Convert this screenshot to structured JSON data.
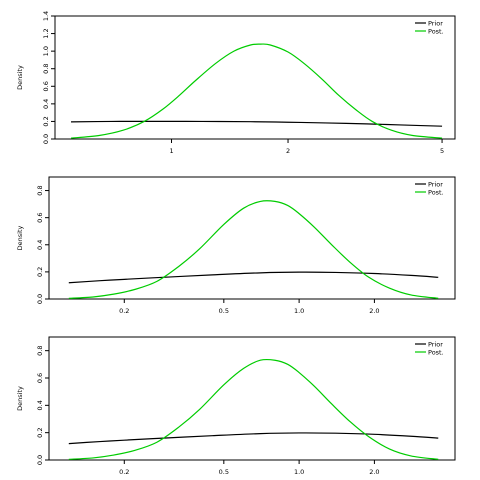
{
  "chart_data": [
    {
      "type": "line",
      "title": "",
      "xlabel": "",
      "ylabel": "Density",
      "x_scale": "log",
      "xlim": [
        0.5,
        5.4
      ],
      "ylim": [
        0,
        1.4
      ],
      "x_ticks": [
        {
          "value": 1,
          "label": "1"
        },
        {
          "value": 2,
          "label": "2"
        },
        {
          "value": 5,
          "label": "5"
        }
      ],
      "y_ticks": [
        {
          "value": 0,
          "label": "0.0"
        },
        {
          "value": 0.2,
          "label": "0.2"
        },
        {
          "value": 0.4,
          "label": "0.4"
        },
        {
          "value": 0.6,
          "label": "0.6"
        },
        {
          "value": 0.8,
          "label": "0.8"
        },
        {
          "value": 1.0,
          "label": "1.0"
        },
        {
          "value": 1.2,
          "label": "1.2"
        },
        {
          "value": 1.4,
          "label": "1.4"
        }
      ],
      "legend_placement": "top-right",
      "series": [
        {
          "name": "Prior",
          "color": "#000000",
          "x": [
            0.55,
            0.7,
            0.9,
            1.2,
            1.6,
            2.0,
            2.5,
            3.0,
            3.6,
            4.4,
            5.0
          ],
          "values": [
            0.195,
            0.2,
            0.201,
            0.2,
            0.197,
            0.191,
            0.183,
            0.175,
            0.165,
            0.153,
            0.146
          ]
        },
        {
          "name": "Post.",
          "color": "#00cc00",
          "x": [
            0.55,
            0.65,
            0.75,
            0.85,
            0.95,
            1.05,
            1.15,
            1.3,
            1.45,
            1.6,
            1.7,
            1.8,
            2.0,
            2.2,
            2.45,
            2.7,
            3.0,
            3.3,
            3.7,
            4.2,
            5.0
          ],
          "values": [
            0.01,
            0.04,
            0.1,
            0.2,
            0.34,
            0.5,
            0.66,
            0.86,
            1.0,
            1.07,
            1.08,
            1.07,
            0.99,
            0.86,
            0.68,
            0.5,
            0.33,
            0.2,
            0.1,
            0.04,
            0.01
          ]
        }
      ]
    },
    {
      "type": "line",
      "title": "",
      "xlabel": "",
      "ylabel": "Density",
      "x_scale": "log",
      "xlim": [
        0.1,
        4.2
      ],
      "ylim": [
        0,
        0.9
      ],
      "x_ticks": [
        {
          "value": 0.2,
          "label": "0.2"
        },
        {
          "value": 0.5,
          "label": "0.5"
        },
        {
          "value": 1.0,
          "label": "1.0"
        },
        {
          "value": 2.0,
          "label": "2.0"
        }
      ],
      "y_ticks": [
        {
          "value": 0,
          "label": "0.0"
        },
        {
          "value": 0.2,
          "label": "0.2"
        },
        {
          "value": 0.4,
          "label": "0.4"
        },
        {
          "value": 0.6,
          "label": "0.6"
        },
        {
          "value": 0.8,
          "label": "0.8"
        }
      ],
      "legend_placement": "top-right",
      "series": [
        {
          "name": "Prior",
          "color": "#000000",
          "x": [
            0.12,
            0.16,
            0.2,
            0.3,
            0.45,
            0.7,
            1.0,
            1.4,
            2.0,
            2.8,
            3.6
          ],
          "values": [
            0.12,
            0.135,
            0.145,
            0.162,
            0.178,
            0.193,
            0.198,
            0.196,
            0.188,
            0.174,
            0.16
          ]
        },
        {
          "name": "Post.",
          "color": "#00cc00",
          "x": [
            0.12,
            0.15,
            0.18,
            0.22,
            0.27,
            0.33,
            0.4,
            0.5,
            0.6,
            0.7,
            0.8,
            0.9,
            1.0,
            1.15,
            1.35,
            1.6,
            1.9,
            2.3,
            2.8,
            3.6
          ],
          "values": [
            0.005,
            0.015,
            0.035,
            0.07,
            0.13,
            0.24,
            0.37,
            0.55,
            0.67,
            0.72,
            0.72,
            0.69,
            0.63,
            0.53,
            0.4,
            0.27,
            0.16,
            0.08,
            0.03,
            0.005
          ]
        }
      ]
    },
    {
      "type": "line",
      "title": "",
      "xlabel": "",
      "ylabel": "Density",
      "x_scale": "log",
      "xlim": [
        0.1,
        4.2
      ],
      "ylim": [
        0,
        0.9
      ],
      "x_ticks": [
        {
          "value": 0.2,
          "label": "0.2"
        },
        {
          "value": 0.5,
          "label": "0.5"
        },
        {
          "value": 1.0,
          "label": "1.0"
        },
        {
          "value": 2.0,
          "label": "2.0"
        }
      ],
      "y_ticks": [
        {
          "value": 0,
          "label": "0.0"
        },
        {
          "value": 0.2,
          "label": "0.2"
        },
        {
          "value": 0.4,
          "label": "0.4"
        },
        {
          "value": 0.6,
          "label": "0.6"
        },
        {
          "value": 0.8,
          "label": "0.8"
        }
      ],
      "legend_placement": "top-right",
      "series": [
        {
          "name": "Prior",
          "color": "#000000",
          "x": [
            0.12,
            0.16,
            0.2,
            0.3,
            0.45,
            0.7,
            1.0,
            1.4,
            2.0,
            2.8,
            3.6
          ],
          "values": [
            0.12,
            0.135,
            0.145,
            0.162,
            0.178,
            0.193,
            0.198,
            0.196,
            0.188,
            0.174,
            0.16
          ]
        },
        {
          "name": "Post.",
          "color": "#00cc00",
          "x": [
            0.12,
            0.15,
            0.18,
            0.22,
            0.27,
            0.33,
            0.4,
            0.5,
            0.6,
            0.7,
            0.8,
            0.9,
            1.0,
            1.15,
            1.35,
            1.6,
            1.9,
            2.3,
            2.8,
            3.6
          ],
          "values": [
            0.005,
            0.015,
            0.035,
            0.07,
            0.13,
            0.24,
            0.37,
            0.55,
            0.67,
            0.73,
            0.73,
            0.7,
            0.64,
            0.54,
            0.41,
            0.28,
            0.17,
            0.08,
            0.03,
            0.005
          ]
        }
      ]
    }
  ]
}
